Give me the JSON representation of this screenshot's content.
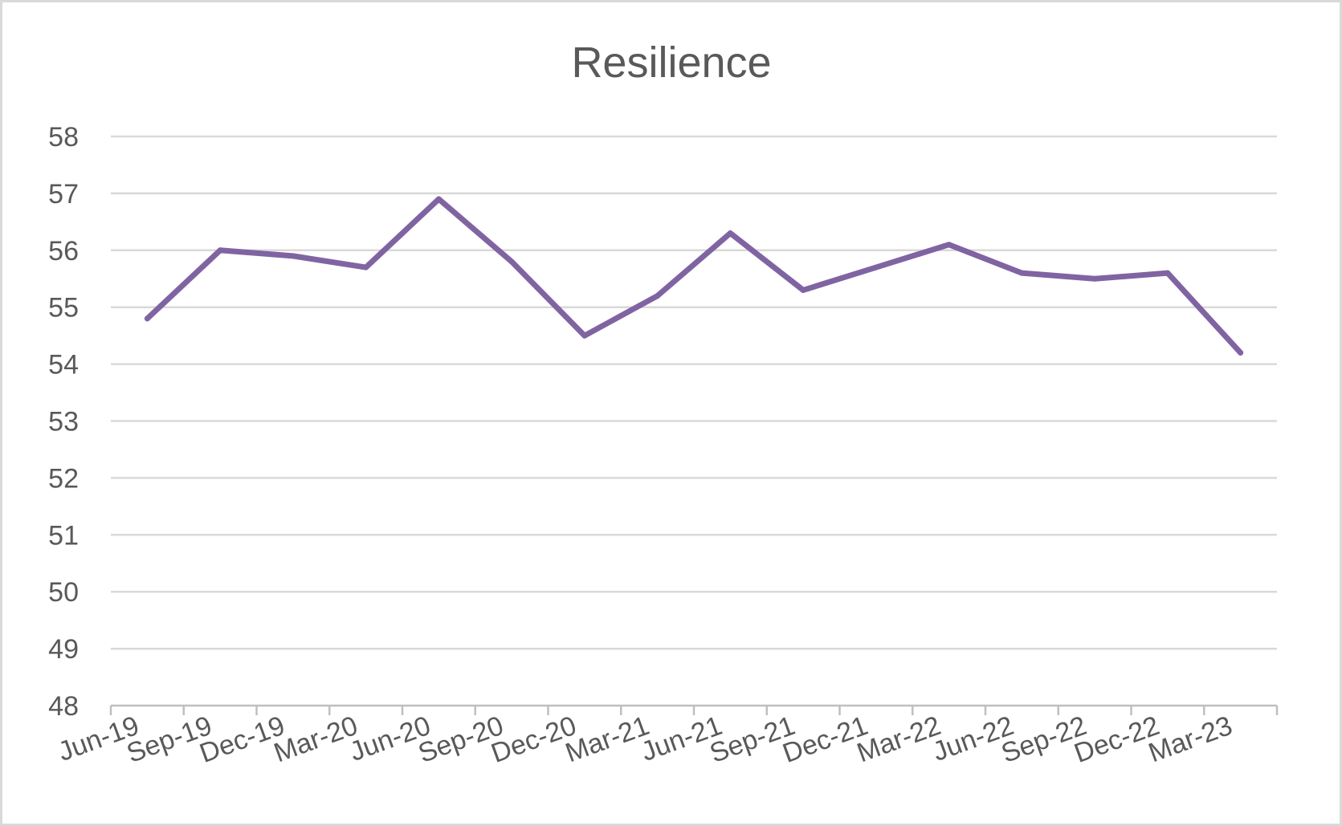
{
  "chart_data": {
    "type": "line",
    "title": "Resilience",
    "xlabel": "",
    "ylabel": "",
    "ylim": [
      48,
      58
    ],
    "yticks": [
      48,
      49,
      50,
      51,
      52,
      53,
      54,
      55,
      56,
      57,
      58
    ],
    "grid": true,
    "legend": "none",
    "categories": [
      "Jun-19",
      "Sep-19",
      "Dec-19",
      "Mar-20",
      "Jun-20",
      "Sep-20",
      "Dec-20",
      "Mar-21",
      "Jun-21",
      "Sep-21",
      "Dec-21",
      "Mar-22",
      "Jun-22",
      "Sep-22",
      "Dec-22",
      "Mar-23"
    ],
    "series": [
      {
        "color": "#8064a2",
        "values": [
          54.8,
          56.0,
          55.9,
          55.7,
          56.9,
          55.8,
          54.5,
          55.2,
          56.3,
          55.3,
          55.7,
          56.1,
          55.6,
          55.5,
          55.6,
          54.2
        ]
      }
    ]
  }
}
